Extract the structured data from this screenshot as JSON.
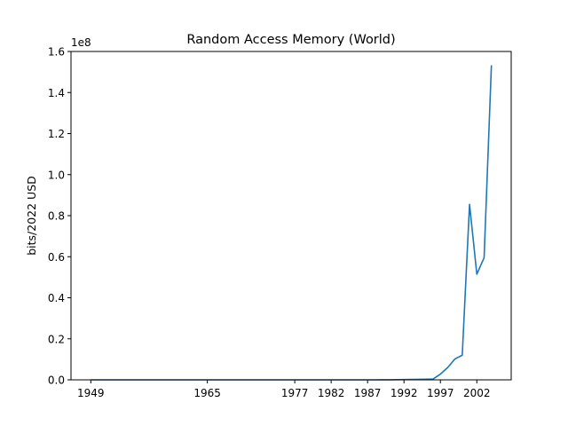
{
  "chart_data": {
    "type": "line",
    "title": "Random Access Memory (World)",
    "xlabel": "",
    "ylabel": "bits/2022 USD",
    "y_offset_label": "1e8",
    "x_tick_labels": [
      "1949",
      "1965",
      "1977",
      "1982",
      "1987",
      "1992",
      "1997",
      "2002"
    ],
    "y_tick_labels": [
      "0.0",
      "0.2",
      "0.4",
      "0.6",
      "0.8",
      "1.0",
      "1.2",
      "1.4",
      "1.6"
    ],
    "y_ticks": [
      0,
      20000000,
      40000000,
      60000000,
      80000000,
      100000000,
      120000000,
      140000000,
      160000000
    ],
    "ylim": [
      0,
      160000000
    ],
    "grid": false,
    "legend": "none",
    "line_color": "#1f77b4",
    "series": [
      {
        "x": [
          "1949",
          "1950",
          "1951",
          "1952",
          "1953",
          "1954",
          "1955",
          "1956",
          "1957",
          "1958",
          "1959",
          "1960",
          "1961",
          "1962",
          "1963",
          "1964",
          "1965",
          "1966",
          "1967",
          "1968",
          "1969",
          "1970",
          "1971",
          "1972",
          "1973",
          "1974",
          "1975",
          "1976",
          "1977",
          "1978",
          "1979",
          "1980",
          "1981",
          "1982",
          "1983",
          "1984",
          "1985",
          "1986",
          "1987",
          "1988",
          "1989",
          "1990",
          "1991",
          "1992",
          "1993",
          "1994",
          "1995",
          "1996",
          "1997",
          "1998",
          "1999",
          "2000",
          "2001",
          "2002",
          "2003",
          "2004"
        ],
        "values": [
          0,
          0,
          0,
          0,
          0,
          0,
          0,
          0,
          0,
          0,
          0,
          0,
          0,
          0,
          0,
          0,
          0,
          0,
          0,
          0,
          0,
          0,
          0,
          0,
          0,
          0,
          0,
          0,
          0,
          0,
          0,
          0,
          0,
          0,
          0,
          0,
          0,
          0,
          0,
          0,
          10000,
          30000,
          60000,
          120000,
          200000,
          260000,
          330000,
          420000,
          2800000,
          6000000,
          10200000,
          12000000,
          85500000,
          51500000,
          59500000,
          153000000
        ]
      }
    ]
  }
}
